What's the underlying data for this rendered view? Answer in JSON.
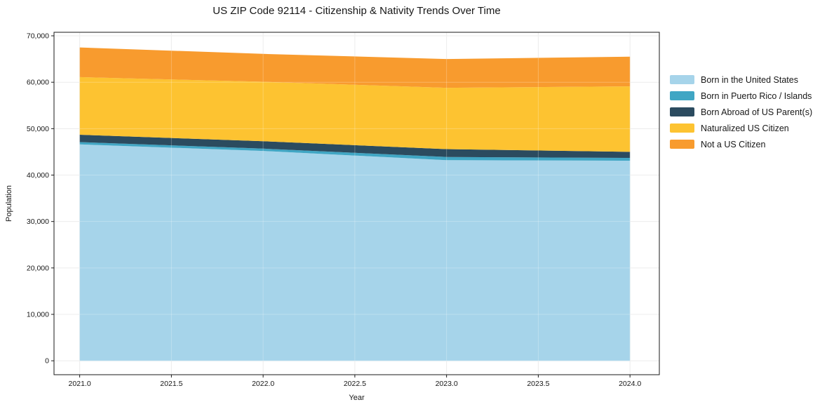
{
  "chart_data": {
    "type": "area",
    "stacked": true,
    "title": "US ZIP Code 92114 - Citizenship & Nativity Trends Over Time",
    "xlabel": "Year",
    "ylabel": "Population",
    "x": [
      2021,
      2022,
      2023,
      2024
    ],
    "series": [
      {
        "name": "Born in the United States",
        "color": "#a6d4ea",
        "values": [
          46600,
          45200,
          43200,
          43100
        ]
      },
      {
        "name": "Born in Puerto Rico / Islands",
        "color": "#40a6c4",
        "values": [
          500,
          500,
          700,
          600
        ]
      },
      {
        "name": "Born Abroad of US Parent(s)",
        "color": "#2b4b5f",
        "values": [
          1600,
          1600,
          1700,
          1300
        ]
      },
      {
        "name": "Naturalized US Citizen",
        "color": "#fdc331",
        "values": [
          12400,
          12800,
          13200,
          14100
        ]
      },
      {
        "name": "Not a US Citizen",
        "color": "#f89b2e",
        "values": [
          6400,
          6000,
          6200,
          6400
        ]
      }
    ],
    "cumulative_totals": [
      67500,
      66100,
      65000,
      65500
    ],
    "xlim": [
      2020.86,
      2024.16
    ],
    "ylim": [
      -3000,
      70760
    ],
    "xticks": [
      2021.0,
      2021.5,
      2022.0,
      2022.5,
      2023.0,
      2023.5,
      2024.0
    ],
    "xtick_labels": [
      "2021.0",
      "2021.5",
      "2022.0",
      "2022.5",
      "2023.0",
      "2023.5",
      "2024.0"
    ],
    "yticks": [
      0,
      10000,
      20000,
      30000,
      40000,
      50000,
      60000,
      70000
    ],
    "ytick_labels": [
      "0",
      "10,000",
      "20,000",
      "30,000",
      "40,000",
      "50,000",
      "60,000",
      "70,000"
    ],
    "grid": true,
    "legend_position": "right",
    "colors": {
      "background": "#ffffff",
      "gridline": "#e7e7e7",
      "axis": "#1a1a1a",
      "text": "#171717"
    }
  }
}
